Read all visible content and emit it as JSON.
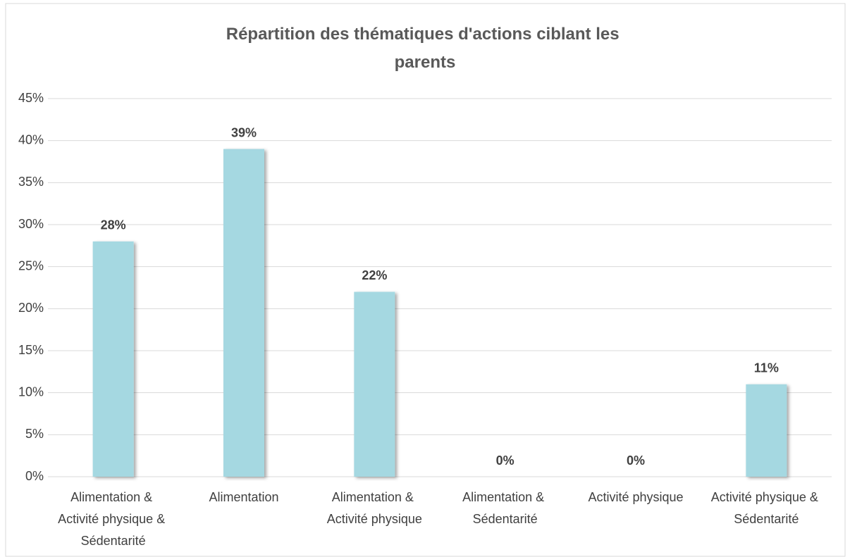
{
  "chart_data": {
    "type": "bar",
    "title": "Répartition des thématiques d'actions ciblant les parents",
    "categories": [
      "Alimentation & Activité physique & Sédentarité",
      "Alimentation",
      "Alimentation & Activité physique",
      "Alimentation & Sédentarité",
      "Activité physique",
      "Activité physique & Sédentarité"
    ],
    "values": [
      28,
      39,
      22,
      0,
      0,
      11
    ],
    "value_labels": [
      "28%",
      "39%",
      "22%",
      "0%",
      "0%",
      "11%"
    ],
    "color": "#a5d8e1",
    "ylim": [
      0,
      45
    ],
    "yticks": [
      {
        "value": 0,
        "label": "0%"
      },
      {
        "value": 5,
        "label": "5%"
      },
      {
        "value": 10,
        "label": "10%"
      },
      {
        "value": 15,
        "label": "15%"
      },
      {
        "value": 20,
        "label": "20%"
      },
      {
        "value": 25,
        "label": "25%"
      },
      {
        "value": 30,
        "label": "30%"
      },
      {
        "value": 35,
        "label": "35%"
      },
      {
        "value": 40,
        "label": "40%"
      },
      {
        "value": 45,
        "label": "45%"
      }
    ],
    "grid": true
  }
}
